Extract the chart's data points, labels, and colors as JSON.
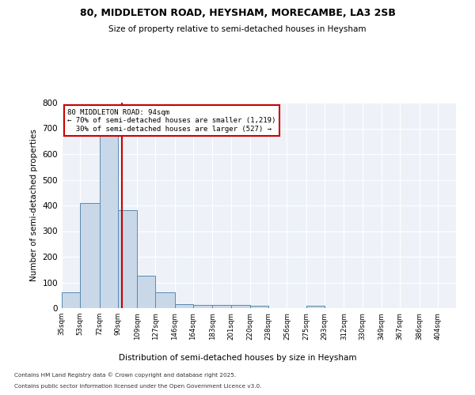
{
  "title1": "80, MIDDLETON ROAD, HEYSHAM, MORECAMBE, LA3 2SB",
  "title2": "Size of property relative to semi-detached houses in Heysham",
  "xlabel": "Distribution of semi-detached houses by size in Heysham",
  "ylabel": "Number of semi-detached properties",
  "bin_labels": [
    "35sqm",
    "53sqm",
    "72sqm",
    "90sqm",
    "109sqm",
    "127sqm",
    "146sqm",
    "164sqm",
    "183sqm",
    "201sqm",
    "220sqm",
    "238sqm",
    "256sqm",
    "275sqm",
    "293sqm",
    "312sqm",
    "330sqm",
    "349sqm",
    "367sqm",
    "386sqm",
    "404sqm"
  ],
  "bar_values": [
    63,
    408,
    692,
    383,
    125,
    63,
    15,
    12,
    12,
    12,
    8,
    0,
    0,
    8,
    0,
    0,
    0,
    0,
    0,
    0,
    0
  ],
  "bar_color": "#c8d8e8",
  "bar_edge_color": "#5a8ab0",
  "property_line_x": 94,
  "smaller_pct": 70,
  "smaller_count": 1219,
  "larger_pct": 30,
  "larger_count": 527,
  "annotation_box_color": "#ffffff",
  "annotation_box_edge": "#cc0000",
  "vline_color": "#cc0000",
  "footnote1": "Contains HM Land Registry data © Crown copyright and database right 2025.",
  "footnote2": "Contains public sector information licensed under the Open Government Licence v3.0.",
  "ylim": [
    0,
    800
  ],
  "yticks": [
    0,
    100,
    200,
    300,
    400,
    500,
    600,
    700,
    800
  ],
  "bin_edges": [
    35,
    53,
    72,
    90,
    109,
    127,
    146,
    164,
    183,
    201,
    220,
    238,
    256,
    275,
    293,
    312,
    330,
    349,
    367,
    386,
    404,
    422
  ],
  "background_color": "#eef2f8"
}
